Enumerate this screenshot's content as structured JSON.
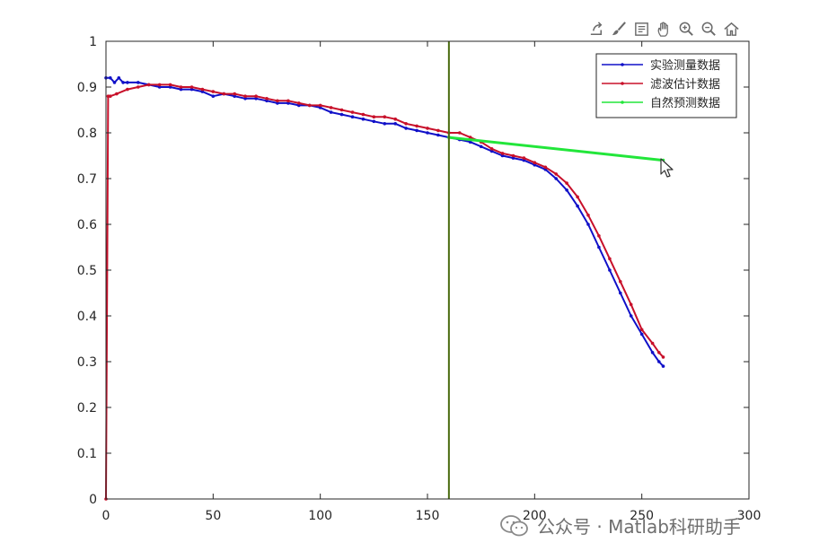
{
  "toolbar": {
    "icons": [
      "export-icon",
      "brush-icon",
      "data-tips-icon",
      "pan-icon",
      "zoom-in-icon",
      "zoom-out-icon",
      "home-icon"
    ]
  },
  "watermark": {
    "text": "公众号 · Matlab科研助手"
  },
  "colors": {
    "measured": "#1010c8",
    "filtered": "#c8102a",
    "predicted": "#22e63a",
    "vline": "#4a6b10",
    "axes": "#262626"
  },
  "chart_data": {
    "type": "line",
    "title": "",
    "xlabel": "",
    "ylabel": "",
    "xlim": [
      0,
      300
    ],
    "ylim": [
      0,
      1
    ],
    "xticks": [
      0,
      50,
      100,
      150,
      200,
      250,
      300
    ],
    "yticks": [
      0,
      0.1,
      0.2,
      0.3,
      0.4,
      0.5,
      0.6,
      0.7,
      0.8,
      0.9,
      1
    ],
    "xtick_labels": [
      "0",
      "50",
      "100",
      "150",
      "200",
      "250",
      "300"
    ],
    "ytick_labels": [
      "0",
      "0.1",
      "0.2",
      "0.3",
      "0.4",
      "0.5",
      "0.6",
      "0.7",
      "0.8",
      "0.9",
      "1"
    ],
    "grid": false,
    "legend_position": "top-right",
    "vertical_line_x": 160,
    "series": [
      {
        "name": "实验测量数据",
        "color": "#1010c8",
        "x": [
          0,
          2,
          4,
          6,
          8,
          10,
          15,
          20,
          25,
          30,
          35,
          40,
          45,
          50,
          55,
          60,
          65,
          70,
          75,
          80,
          85,
          90,
          95,
          100,
          105,
          110,
          115,
          120,
          125,
          130,
          135,
          140,
          145,
          150,
          155,
          160,
          165,
          170,
          175,
          180,
          185,
          190,
          195,
          200,
          205,
          210,
          215,
          220,
          225,
          230,
          235,
          240,
          245,
          250,
          255,
          258,
          260
        ],
        "y": [
          0.92,
          0.92,
          0.91,
          0.92,
          0.91,
          0.91,
          0.91,
          0.905,
          0.9,
          0.9,
          0.895,
          0.895,
          0.89,
          0.88,
          0.885,
          0.88,
          0.875,
          0.875,
          0.87,
          0.865,
          0.865,
          0.86,
          0.86,
          0.855,
          0.845,
          0.84,
          0.835,
          0.83,
          0.825,
          0.82,
          0.82,
          0.81,
          0.805,
          0.8,
          0.795,
          0.79,
          0.785,
          0.78,
          0.77,
          0.76,
          0.75,
          0.745,
          0.74,
          0.73,
          0.72,
          0.7,
          0.675,
          0.64,
          0.6,
          0.55,
          0.5,
          0.45,
          0.4,
          0.36,
          0.32,
          0.3,
          0.29
        ]
      },
      {
        "name": "滤波估计数据",
        "color": "#c8102a",
        "x": [
          0,
          1,
          2,
          5,
          10,
          15,
          20,
          25,
          30,
          35,
          40,
          45,
          50,
          55,
          60,
          65,
          70,
          75,
          80,
          85,
          90,
          95,
          100,
          105,
          110,
          115,
          120,
          125,
          130,
          135,
          140,
          145,
          150,
          155,
          160,
          165,
          170,
          175,
          180,
          185,
          190,
          195,
          200,
          205,
          210,
          215,
          220,
          225,
          230,
          235,
          240,
          245,
          250,
          255,
          258,
          260
        ],
        "y": [
          0,
          0.88,
          0.88,
          0.885,
          0.895,
          0.9,
          0.905,
          0.905,
          0.905,
          0.9,
          0.9,
          0.895,
          0.89,
          0.885,
          0.885,
          0.88,
          0.88,
          0.875,
          0.87,
          0.87,
          0.865,
          0.86,
          0.86,
          0.855,
          0.85,
          0.845,
          0.84,
          0.835,
          0.835,
          0.83,
          0.82,
          0.815,
          0.81,
          0.805,
          0.8,
          0.8,
          0.79,
          0.78,
          0.765,
          0.755,
          0.75,
          0.745,
          0.735,
          0.725,
          0.71,
          0.69,
          0.66,
          0.62,
          0.575,
          0.525,
          0.475,
          0.425,
          0.37,
          0.34,
          0.32,
          0.31
        ]
      },
      {
        "name": "自然预测数据",
        "color": "#22e63a",
        "x": [
          160,
          260
        ],
        "y": [
          0.79,
          0.74
        ]
      }
    ]
  }
}
